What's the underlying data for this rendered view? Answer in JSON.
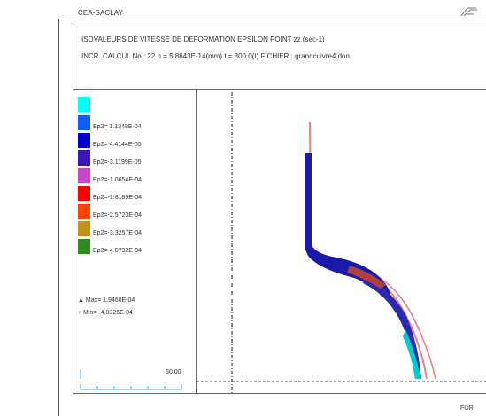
{
  "header": {
    "org": "CEA-SACLAY",
    "title": "ISOVALEURS DE VITESSE DE DEFORMATION EPSILON POINT zz (sec-1)",
    "subtitle": "INCR. CALCUL No : 22   h = 5.8843E-14(mm)   t = 300.0(t)   FICHIER : grandcuivre4.don"
  },
  "legend": {
    "items": [
      {
        "color": "#00ffff",
        "label": ""
      },
      {
        "color": "#0a60ff",
        "label": "Ep2= 1.1348E-04"
      },
      {
        "color": "#0000cc",
        "label": "Ep2= 4.4144E-05"
      },
      {
        "color": "#3c16b4",
        "label": "Ep2=-3.1199E-05"
      },
      {
        "color": "#cc44cc",
        "label": "Ep2=-1.0654E-04"
      },
      {
        "color": "#ff0000",
        "label": "Ep2=-1.8189E-04"
      },
      {
        "color": "#ff4400",
        "label": "Ep2=-2.5723E-04"
      },
      {
        "color": "#c89018",
        "label": "Ep2=-3.3257E-04"
      },
      {
        "color": "#2e8b20",
        "label": "Ep2=-4.0792E-04"
      }
    ],
    "max_label": "Max= 1.9460E-04",
    "min_label": "Min= -4.0326E-04",
    "scale_label": "50.00"
  },
  "footer": {
    "label": "FOR"
  },
  "colors": {
    "frame": "#555555",
    "profile_outline": "#f08080",
    "profile_fill": "#1a1aaa",
    "profile_tip": "#00cccc"
  },
  "icons": [
    "expand-icon"
  ]
}
